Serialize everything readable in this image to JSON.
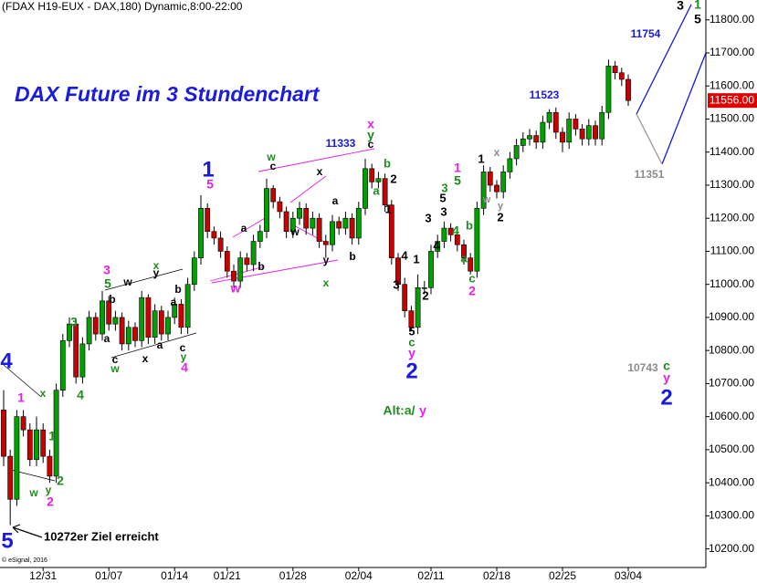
{
  "chart_data": {
    "type": "candlestick",
    "header": "(FDAX H19-EUX - DAX,180) Dynamic,8:00-22:00",
    "title": "DAX Future im 3 Stundenchart",
    "note": "10272er Ziel erreicht",
    "copyright": "© eSignal, 2016",
    "up_color": "#00a000",
    "down_color": "#c80000",
    "categories": [
      null,
      null,
      null,
      null,
      null,
      null,
      "12/31",
      null,
      null,
      null,
      null,
      null,
      null,
      null,
      null,
      null,
      "01/07",
      null,
      null,
      null,
      null,
      null,
      null,
      null,
      null,
      null,
      "01/14",
      null,
      null,
      null,
      null,
      null,
      null,
      null,
      "01/21",
      null,
      null,
      null,
      null,
      null,
      null,
      null,
      null,
      null,
      "01/28",
      null,
      null,
      null,
      null,
      null,
      null,
      null,
      null,
      null,
      "02/04",
      null,
      null,
      null,
      null,
      null,
      null,
      null,
      null,
      null,
      null,
      "02/11",
      null,
      null,
      null,
      null,
      null,
      null,
      null,
      null,
      null,
      "02/18",
      null,
      null,
      null,
      null,
      null,
      null,
      null,
      null,
      null,
      "02/25",
      null,
      null,
      null,
      null,
      null,
      null,
      null,
      null,
      null,
      "03/04"
    ],
    "open": [
      10620,
      10480,
      10350,
      10600,
      10560,
      10470,
      10560,
      10480,
      10420,
      10680,
      10830,
      10880,
      10720,
      10820,
      10900,
      10850,
      10950,
      10880,
      10900,
      10820,
      10870,
      10830,
      10960,
      10840,
      10920,
      10850,
      10900,
      10940,
      10870,
      11000,
      11080,
      11230,
      11160,
      11140,
      11100,
      11040,
      11010,
      11080,
      11060,
      11130,
      11160,
      11290,
      11250,
      11220,
      11160,
      11200,
      11230,
      11170,
      11200,
      11130,
      11120,
      11190,
      11170,
      11200,
      11140,
      11230,
      11350,
      11310,
      11320,
      11240,
      11080,
      11000,
      10920,
      10870,
      10990,
      10990,
      11100,
      11130,
      11170,
      11150,
      11120,
      11080,
      11040,
      11230,
      11340,
      11300,
      11280,
      11340,
      11380,
      11420,
      11440,
      11450,
      11430,
      11490,
      11520,
      11460,
      11430,
      11500,
      11470,
      11440,
      11480,
      11440,
      11520,
      11660,
      11640,
      11620
    ],
    "high": [
      10680,
      10500,
      10620,
      10620,
      10580,
      10600,
      10580,
      10500,
      10700,
      10850,
      10900,
      10895,
      10840,
      10920,
      10915,
      10980,
      10965,
      10920,
      10915,
      10890,
      10885,
      10980,
      10970,
      10940,
      10935,
      10920,
      10960,
      10955,
      11020,
      11100,
      11270,
      11245,
      11175,
      11160,
      11115,
      11060,
      11100,
      11095,
      11150,
      11180,
      11320,
      11300,
      11265,
      11235,
      11220,
      11250,
      11245,
      11220,
      11215,
      11150,
      11210,
      11205,
      11220,
      11215,
      11250,
      11380,
      11365,
      11340,
      11335,
      11255,
      11095,
      11020,
      10935,
      11030,
      11010,
      11120,
      11150,
      11190,
      11185,
      11165,
      11135,
      11095,
      11250,
      11360,
      11355,
      11315,
      11360,
      11400,
      11440,
      11460,
      11470,
      11465,
      11510,
      11530,
      11535,
      11475,
      11520,
      11515,
      11485,
      11500,
      11495,
      11540,
      11680,
      11675,
      11655,
      11635
    ],
    "low": [
      10450,
      10272,
      10330,
      10540,
      10450,
      10450,
      10460,
      10400,
      10400,
      10660,
      10810,
      10700,
      10700,
      10800,
      10830,
      10830,
      10860,
      10860,
      10800,
      10800,
      10810,
      10810,
      10820,
      10820,
      10830,
      10830,
      10880,
      10850,
      10850,
      10980,
      11060,
      11140,
      11120,
      11080,
      11020,
      10990,
      10990,
      11040,
      11040,
      11110,
      11140,
      11230,
      11200,
      11140,
      11140,
      11180,
      11150,
      11150,
      11110,
      11080,
      11100,
      11150,
      11150,
      11120,
      11120,
      11210,
      11290,
      11290,
      11220,
      11060,
      10980,
      10900,
      10860,
      10850,
      10970,
      10970,
      11080,
      11110,
      11130,
      11100,
      11060,
      11030,
      11020,
      11210,
      11280,
      11260,
      11260,
      11320,
      11360,
      11400,
      11420,
      11410,
      11410,
      11470,
      11440,
      11400,
      11410,
      11450,
      11420,
      11420,
      11420,
      11420,
      11500,
      11620,
      11600,
      11540
    ],
    "close": [
      10480,
      10350,
      10600,
      10560,
      10470,
      10560,
      10480,
      10420,
      10680,
      10830,
      10880,
      10720,
      10820,
      10900,
      10850,
      10950,
      10880,
      10900,
      10820,
      10870,
      10830,
      10960,
      10840,
      10920,
      10850,
      10900,
      10940,
      10870,
      11000,
      11080,
      11230,
      11160,
      11140,
      11100,
      11040,
      11010,
      11080,
      11060,
      11130,
      11160,
      11290,
      11250,
      11220,
      11160,
      11200,
      11230,
      11170,
      11200,
      11130,
      11120,
      11190,
      11170,
      11200,
      11140,
      11230,
      11350,
      11310,
      11320,
      11240,
      11080,
      11000,
      10920,
      10870,
      10990,
      10990,
      11100,
      11130,
      11170,
      11150,
      11120,
      11080,
      11040,
      11230,
      11340,
      11300,
      11280,
      11340,
      11380,
      11420,
      11440,
      11450,
      11430,
      11490,
      11520,
      11460,
      11430,
      11500,
      11470,
      11440,
      11480,
      11440,
      11520,
      11660,
      11640,
      11620,
      11556
    ],
    "last_price": {
      "value": 11556,
      "label": "11556.00"
    },
    "last_price_color": "#e00000",
    "ylim": [
      10130,
      11860
    ],
    "yticks": [
      {
        "value": 10200,
        "label": "10200.00"
      },
      {
        "value": 10300,
        "label": "10300.00"
      },
      {
        "value": 10400,
        "label": "10400.00"
      },
      {
        "value": 10500,
        "label": "10500.00"
      },
      {
        "value": 10600,
        "label": "10600.00"
      },
      {
        "value": 10700,
        "label": "10700.00"
      },
      {
        "value": 10800,
        "label": "10800.00"
      },
      {
        "value": 10900,
        "label": "10900.00"
      },
      {
        "value": 11000,
        "label": "11000.00"
      },
      {
        "value": 11100,
        "label": "11100.00"
      },
      {
        "value": 11200,
        "label": "11200.00"
      },
      {
        "value": 11300,
        "label": "11300.00"
      },
      {
        "value": 11400,
        "label": "11400.00"
      },
      {
        "value": 11500,
        "label": "11500.00"
      },
      {
        "value": 11600,
        "label": "11600.00"
      },
      {
        "value": 11700,
        "label": "11700.00"
      },
      {
        "value": 11800,
        "label": "11800.00"
      }
    ],
    "annotations": [
      {
        "text": "4",
        "color": "#1a1ae0"
      },
      {
        "text": "5",
        "color": "#1a1ae0"
      },
      {
        "text": "1",
        "color": "#e81ee8"
      },
      {
        "text": "x",
        "color": "#1e8c1e"
      },
      {
        "text": "4",
        "color": "#1e8c1e"
      },
      {
        "text": "1",
        "color": "#1e8c1e"
      },
      {
        "text": "w",
        "color": "#1e8c1e"
      },
      {
        "text": "y",
        "color": "#1e8c1e"
      },
      {
        "text": "2",
        "color": "#e81ee8"
      },
      {
        "text": "2",
        "color": "#1e8c1e"
      },
      {
        "text": "3",
        "color": "#1e8c1e"
      },
      {
        "text": "3",
        "color": "#e81ee8"
      },
      {
        "text": "5",
        "color": "#1e8c1e"
      },
      {
        "text": "b",
        "color": "#000000"
      },
      {
        "text": "w",
        "color": "#000000"
      },
      {
        "text": "a",
        "color": "#000000"
      },
      {
        "text": "c",
        "color": "#000000"
      },
      {
        "text": "w",
        "color": "#1e8c1e"
      },
      {
        "text": "x",
        "color": "#000000"
      },
      {
        "text": "a",
        "color": "#000000"
      },
      {
        "text": "c",
        "color": "#000000"
      },
      {
        "text": "y",
        "color": "#1e8c1e"
      },
      {
        "text": "4",
        "color": "#e81ee8"
      },
      {
        "text": "x",
        "color": "#1e8c1e"
      },
      {
        "text": "y",
        "color": "#000000"
      },
      {
        "text": "b",
        "color": "#000000"
      },
      {
        "text": "a",
        "color": "#000000"
      },
      {
        "text": "1",
        "color": "#1a1ae0"
      },
      {
        "text": "5",
        "color": "#e81ee8"
      },
      {
        "text": "a",
        "color": "#000000"
      },
      {
        "text": "b",
        "color": "#000000"
      },
      {
        "text": "w",
        "color": "#e81ee8"
      },
      {
        "text": "w",
        "color": "#1e8c1e"
      },
      {
        "text": "c",
        "color": "#000000"
      },
      {
        "text": "x",
        "color": "#000000"
      },
      {
        "text": "a",
        "color": "#000000"
      },
      {
        "text": "w",
        "color": "#000000"
      },
      {
        "text": "y",
        "color": "#000000"
      },
      {
        "text": "x",
        "color": "#1e8c1e"
      },
      {
        "text": "b",
        "color": "#000000"
      },
      {
        "text": "11333",
        "color": "#1a1ae0"
      },
      {
        "text": "x",
        "color": "#e81ee8"
      },
      {
        "text": "y",
        "color": "#1e8c1e"
      },
      {
        "text": "c",
        "color": "#000000"
      },
      {
        "text": "b",
        "color": "#1e8c1e"
      },
      {
        "text": "a",
        "color": "#1e8c1e"
      },
      {
        "text": "2",
        "color": "#000000"
      },
      {
        "text": "1",
        "color": "#000000"
      },
      {
        "text": "4",
        "color": "#000000"
      },
      {
        "text": "1",
        "color": "#000000"
      },
      {
        "text": "3",
        "color": "#000000"
      },
      {
        "text": "2",
        "color": "#000000"
      },
      {
        "text": "5",
        "color": "#000000"
      },
      {
        "text": "c",
        "color": "#1e8c1e"
      },
      {
        "text": "y",
        "color": "#e81ee8"
      },
      {
        "text": "2",
        "color": "#1a1ae0"
      },
      {
        "text": "3",
        "color": "#000000"
      },
      {
        "text": "4",
        "color": "#000000"
      },
      {
        "text": "3",
        "color": "#1e8c1e"
      },
      {
        "text": "5",
        "color": "#000000"
      },
      {
        "text": "3",
        "color": "#000000"
      },
      {
        "text": "1",
        "color": "#e81ee8"
      },
      {
        "text": "5",
        "color": "#1e8c1e"
      },
      {
        "text": "b",
        "color": "#1e8c1e"
      },
      {
        "text": "4",
        "color": "#1e8c1e"
      },
      {
        "text": "a",
        "color": "#1e8c1e"
      },
      {
        "text": "c",
        "color": "#1e8c1e"
      },
      {
        "text": "2",
        "color": "#e81ee8"
      },
      {
        "text": "1",
        "color": "#000000"
      },
      {
        "text": "x",
        "color": "#8c8c8c"
      },
      {
        "text": "w",
        "color": "#8c8c8c"
      },
      {
        "text": "y",
        "color": "#8c8c8c"
      },
      {
        "text": "2",
        "color": "#000000"
      },
      {
        "text": "11523",
        "color": "#1a1ae0"
      },
      {
        "text": "11754",
        "color": "#1a1ae0"
      },
      {
        "text": "11351",
        "color": "#8c8c8c"
      },
      {
        "text": "10743",
        "color": "#8c8c8c"
      },
      {
        "text": "c",
        "color": "#1e8c1e"
      },
      {
        "text": "y",
        "color": "#e81ee8"
      },
      {
        "text": "2",
        "color": "#1a1ae0"
      },
      {
        "text": "3",
        "color": "#000000"
      },
      {
        "text": "1",
        "color": "#1e8c1e"
      },
      {
        "text": "5",
        "color": "#000000"
      },
      {
        "text": "Alt:a/",
        "color": "#1e8c1e"
      },
      {
        "text": "y",
        "color": "#e81ee8"
      }
    ]
  }
}
